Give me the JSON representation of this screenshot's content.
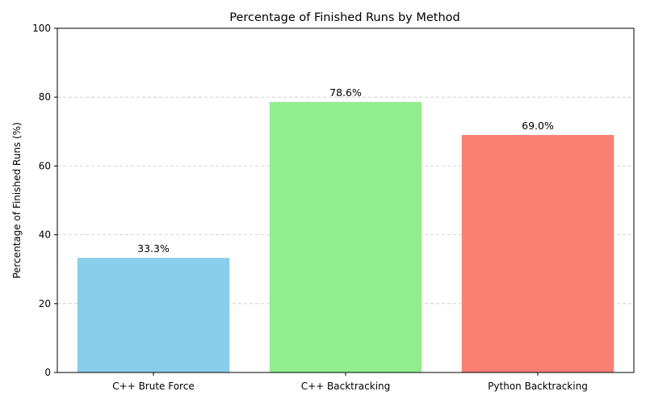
{
  "chart_data": {
    "type": "bar",
    "title": "Percentage of Finished Runs by Method",
    "xlabel": "",
    "ylabel": "Percentage of Finished Runs (%)",
    "categories": [
      "C++ Brute Force",
      "C++ Backtracking",
      "Python Backtracking"
    ],
    "values": [
      33.3,
      78.6,
      69.0
    ],
    "data_labels": [
      "33.3%",
      "78.6%",
      "69.0%"
    ],
    "colors": [
      "#87ceeb",
      "#90ee90",
      "#fa8072"
    ],
    "ylim": [
      0,
      100
    ],
    "yticks": [
      0,
      20,
      40,
      60,
      80,
      100
    ],
    "ytick_labels": [
      "0",
      "20",
      "40",
      "60",
      "80",
      "100"
    ],
    "grid": "y-dashed",
    "legend": "none"
  }
}
